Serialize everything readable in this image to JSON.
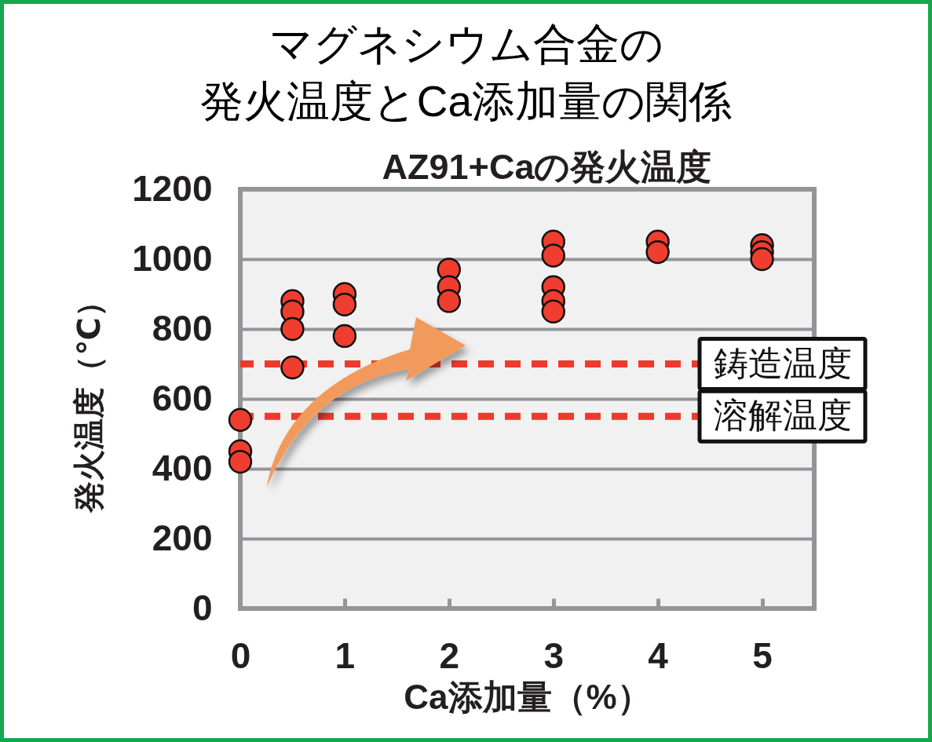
{
  "chart_data": {
    "type": "scatter",
    "title": "マグネシウム合金の発火温度とCa添加量の関係",
    "subtitle": "AZ91+Caの発火温度",
    "xlabel": "Ca添加量（%）",
    "ylabel": "発火温度（℃）",
    "x": [
      0,
      0,
      0,
      0.5,
      0.5,
      0.5,
      0.5,
      1,
      1,
      1,
      2,
      2,
      2,
      3,
      3,
      3,
      3,
      3,
      4,
      4,
      5,
      5,
      5
    ],
    "series": [
      {
        "color": "#ef3d2f",
        "values": [
          540,
          450,
          420,
          880,
          850,
          800,
          690,
          900,
          870,
          780,
          970,
          920,
          880,
          1050,
          1010,
          920,
          880,
          850,
          1050,
          1020,
          1040,
          1020,
          1000
        ]
      }
    ],
    "xlim": [
      0,
      5.5
    ],
    "xticks": [
      0,
      1,
      2,
      3,
      4,
      5
    ],
    "ylim": [
      0,
      1200
    ],
    "yticks": [
      0,
      200,
      400,
      600,
      800,
      1000,
      1200
    ],
    "grid": "y",
    "marker": "circle",
    "ref_lines": [
      {
        "axis": "y",
        "value": 700,
        "label": "鋳造温度",
        "color": "#ee3a2c",
        "line_style": "dashed"
      },
      {
        "axis": "y",
        "value": 550,
        "label": "溶解温度",
        "color": "#ee3a2c",
        "line_style": "dashed"
      }
    ]
  }
}
